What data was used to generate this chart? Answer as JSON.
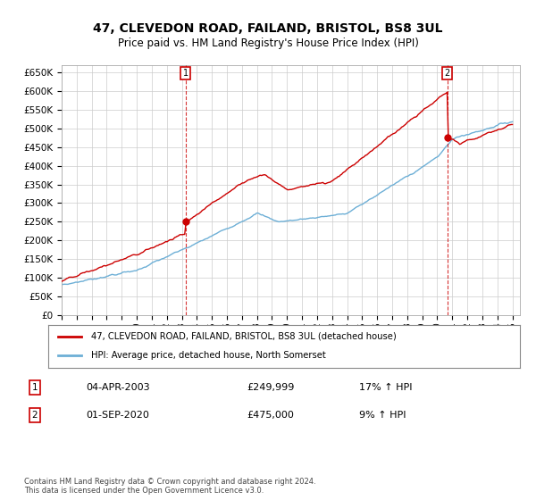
{
  "title": "47, CLEVEDON ROAD, FAILAND, BRISTOL, BS8 3UL",
  "subtitle": "Price paid vs. HM Land Registry's House Price Index (HPI)",
  "ylim": [
    0,
    670000
  ],
  "yticks": [
    0,
    50000,
    100000,
    150000,
    200000,
    250000,
    300000,
    350000,
    400000,
    450000,
    500000,
    550000,
    600000,
    650000
  ],
  "ytick_labels": [
    "£0",
    "£50K",
    "£100K",
    "£150K",
    "£200K",
    "£250K",
    "£300K",
    "£350K",
    "£400K",
    "£450K",
    "£500K",
    "£550K",
    "£600K",
    "£650K"
  ],
  "xlim_start": 1995,
  "xlim_end": 2025.5,
  "hpi_color": "#6dafd6",
  "price_color": "#cc0000",
  "marker1_x": 2003.25,
  "marker1_y": 249999,
  "marker2_x": 2020.67,
  "marker2_y": 475000,
  "legend_label1": "47, CLEVEDON ROAD, FAILAND, BRISTOL, BS8 3UL (detached house)",
  "legend_label2": "HPI: Average price, detached house, North Somerset",
  "table_row1": [
    "1",
    "04-APR-2003",
    "£249,999",
    "17% ↑ HPI"
  ],
  "table_row2": [
    "2",
    "01-SEP-2020",
    "£475,000",
    "9% ↑ HPI"
  ],
  "footer": "Contains HM Land Registry data © Crown copyright and database right 2024.\nThis data is licensed under the Open Government Licence v3.0.",
  "background_color": "#ffffff",
  "grid_color": "#cccccc"
}
